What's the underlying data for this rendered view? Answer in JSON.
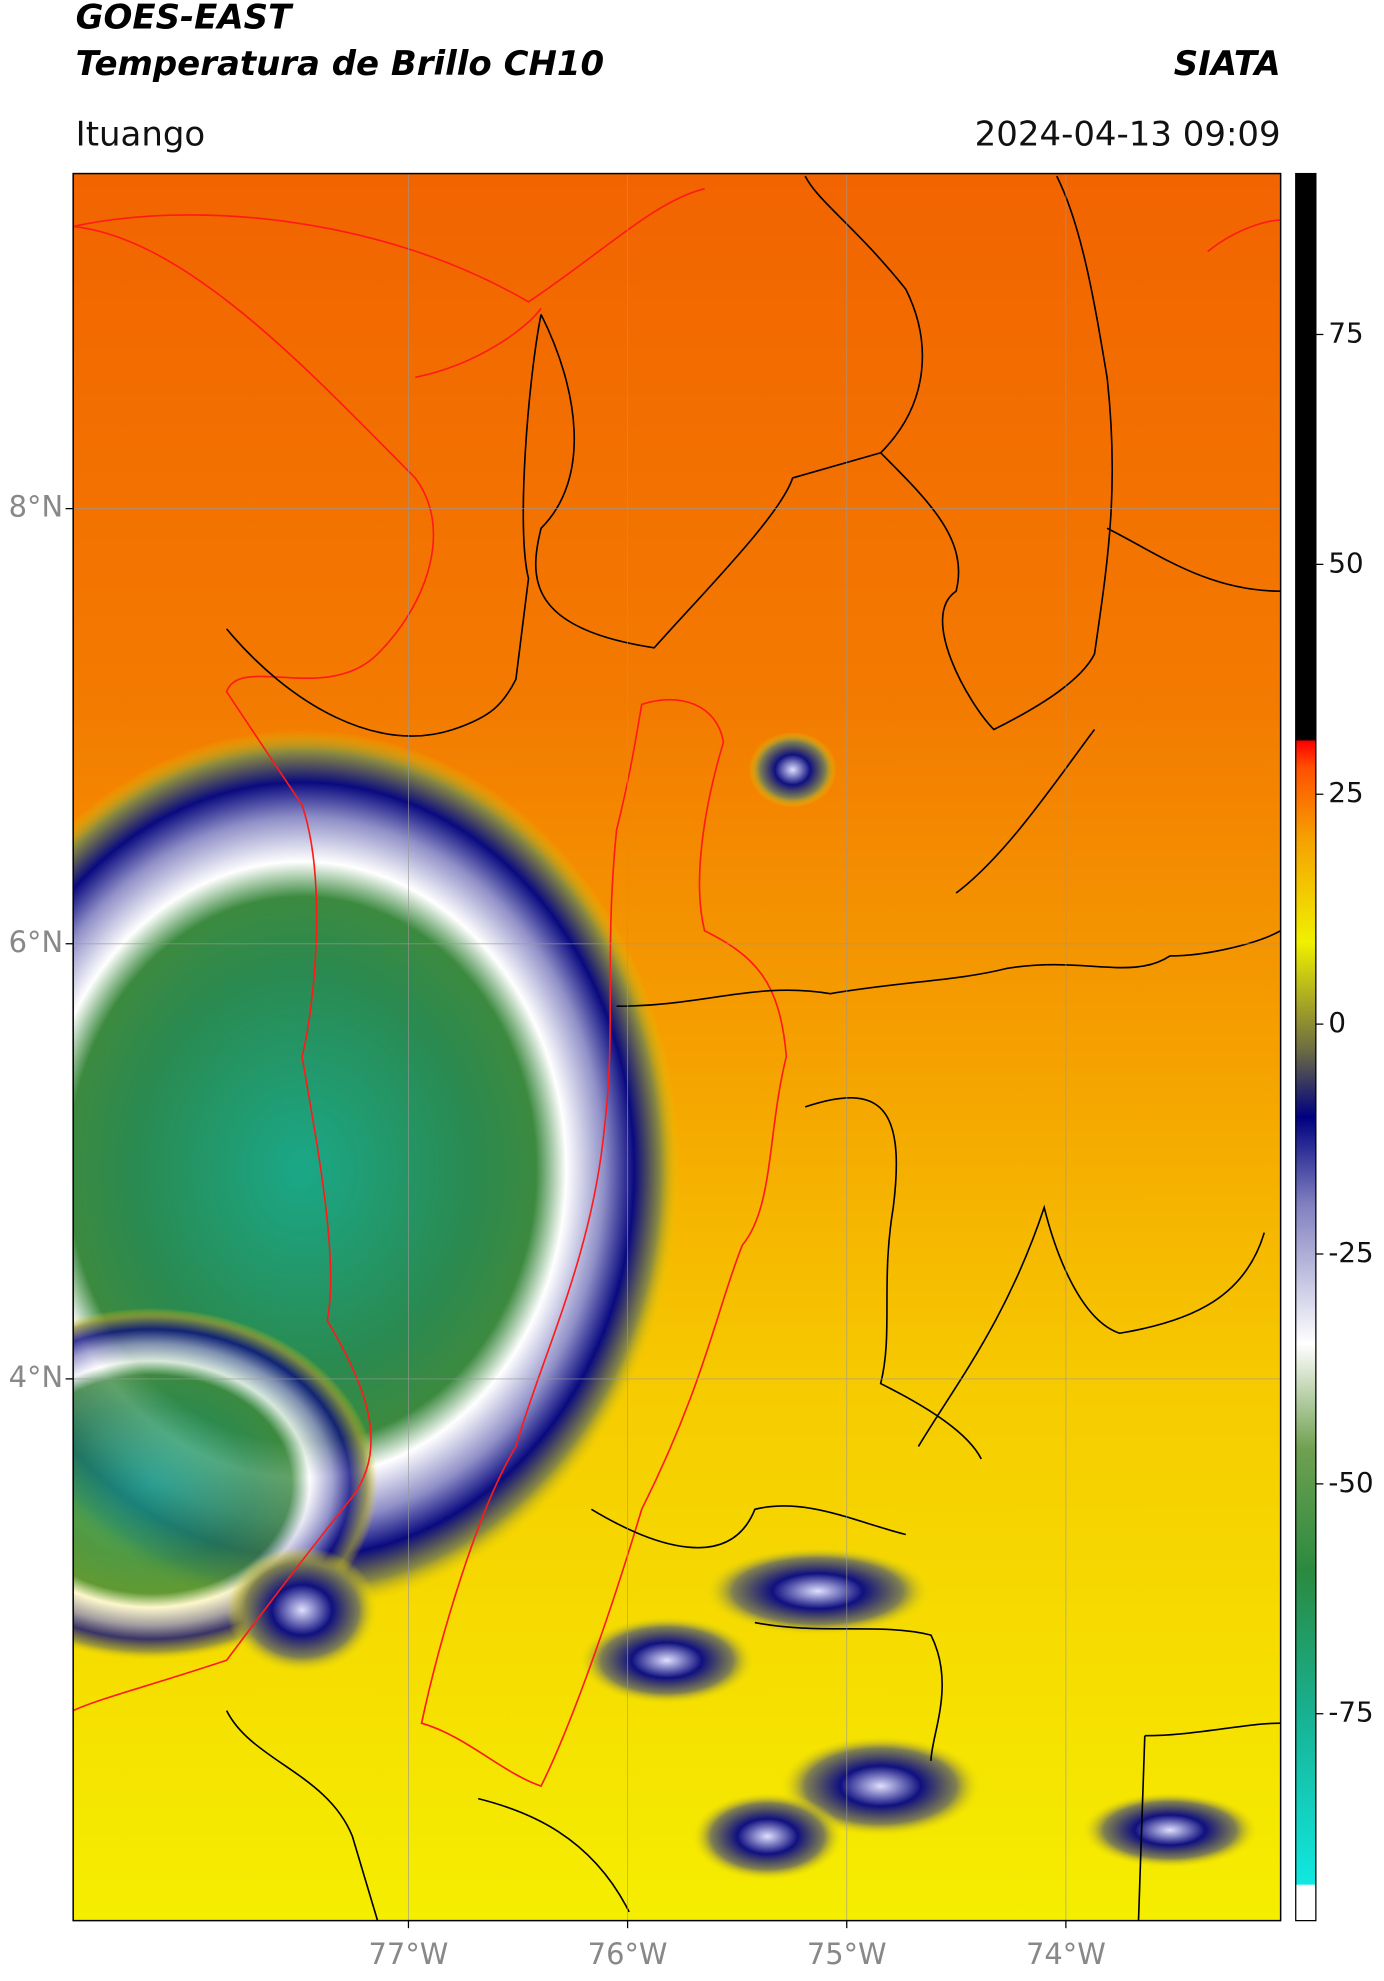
{
  "chart_data": {
    "type": "map",
    "title": "GOES-EAST",
    "subtitle": "Temperatura de Brillo CH10",
    "source": "SIATA",
    "location": "Ituango",
    "datetime": "2024-04-13 09:09",
    "xlim": [
      -78.53,
      -73.02
    ],
    "ylim": [
      1.51,
      9.54
    ],
    "xticks": [
      {
        "value": -77,
        "label": "77°W"
      },
      {
        "value": -76,
        "label": "76°W"
      },
      {
        "value": -75,
        "label": "75°W"
      },
      {
        "value": -74,
        "label": "74°W"
      }
    ],
    "yticks": [
      {
        "value": 8,
        "label": "8°N"
      },
      {
        "value": 6,
        "label": "6°N"
      },
      {
        "value": 4,
        "label": "4°N"
      }
    ],
    "grid": true,
    "colorbar": {
      "lim": [
        -97.5,
        92.5
      ],
      "ticks": [
        75,
        50,
        25,
        0,
        -25,
        -50,
        -75
      ]
    }
  }
}
